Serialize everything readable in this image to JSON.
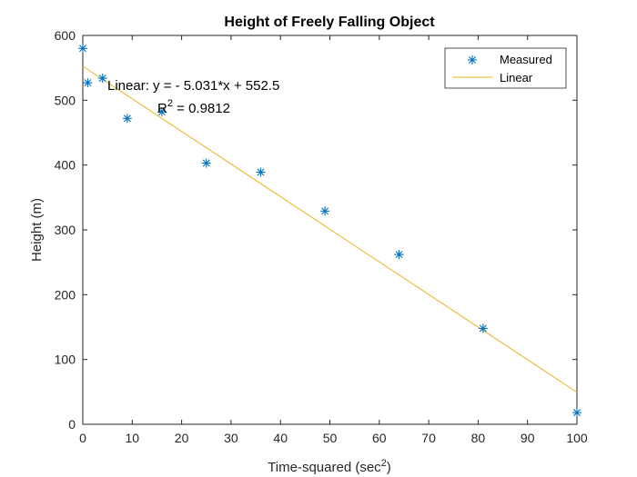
{
  "chart_data": {
    "type": "scatter",
    "title": "Height of Freely Falling Object",
    "xlabel_main": "Time-squared (sec",
    "xlabel_sup": "2",
    "xlabel_close": ")",
    "ylabel": "Height (m)",
    "xlim": [
      0,
      100
    ],
    "ylim": [
      0,
      600
    ],
    "xticks": [
      0,
      10,
      20,
      30,
      40,
      50,
      60,
      70,
      80,
      90,
      100
    ],
    "yticks": [
      0,
      100,
      200,
      300,
      400,
      500,
      600
    ],
    "grid": false,
    "legend_position": "top-right",
    "series": [
      {
        "name": "Measured",
        "marker": "asterisk",
        "color": "#0072BD",
        "x": [
          0,
          1,
          4,
          9,
          16,
          25,
          36,
          49,
          64,
          81,
          100
        ],
        "y": [
          580,
          527,
          534,
          472,
          482,
          403,
          389,
          329,
          262,
          148,
          18
        ]
      },
      {
        "name": "Linear",
        "style": "line",
        "color": "#EDB120",
        "slope": -5.031,
        "intercept": 552.5,
        "x": [
          0,
          100
        ],
        "y": [
          552.5,
          49.4
        ]
      }
    ],
    "annotations": {
      "equation": "Linear:  y = - 5.031*x + 552.5",
      "r2_prefix": "R",
      "r2_sup": "2",
      "r2_value": " = 0.9812"
    }
  }
}
